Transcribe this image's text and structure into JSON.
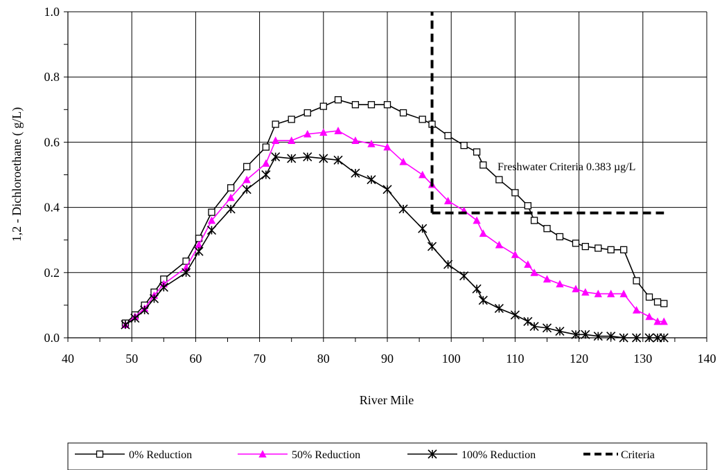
{
  "chart_data": {
    "type": "line",
    "xlabel": "River Mile",
    "ylabel": "1,2 - Dichloroethane (  g/L)",
    "xlim": [
      40,
      140
    ],
    "ylim": [
      0.0,
      1.0
    ],
    "x_ticks": [
      40,
      50,
      60,
      70,
      80,
      90,
      100,
      110,
      120,
      130,
      140
    ],
    "y_ticks": [
      "0.0",
      "0.2",
      "0.4",
      "0.6",
      "0.8",
      "1.0"
    ],
    "grid": "vertical major gridlines",
    "legend_position": "bottom",
    "annotation": "Freshwater Criteria 0.383 µg/L",
    "series": [
      {
        "name": "0% Reduction",
        "color": "#000000",
        "marker": "open-square",
        "x": [
          49,
          50.5,
          52,
          53.5,
          55,
          58.5,
          60.5,
          62.5,
          65.5,
          68,
          71,
          72.5,
          75,
          77.5,
          80,
          82.3,
          85,
          87.5,
          90,
          92.5,
          95.5,
          97,
          99.5,
          102,
          104,
          105,
          107.5,
          110,
          112,
          113,
          115,
          117,
          119.5,
          121,
          123,
          125,
          127,
          129,
          131,
          132.3,
          133.3
        ],
        "y": [
          0.045,
          0.07,
          0.1,
          0.14,
          0.18,
          0.235,
          0.305,
          0.385,
          0.46,
          0.525,
          0.585,
          0.655,
          0.67,
          0.69,
          0.71,
          0.73,
          0.715,
          0.715,
          0.715,
          0.69,
          0.67,
          0.655,
          0.62,
          0.59,
          0.57,
          0.53,
          0.485,
          0.445,
          0.405,
          0.36,
          0.335,
          0.31,
          0.29,
          0.28,
          0.275,
          0.27,
          0.27,
          0.175,
          0.125,
          0.11,
          0.105
        ]
      },
      {
        "name": "50% Reduction",
        "color": "#ff00ff",
        "marker": "filled-triangle",
        "x": [
          49,
          50.5,
          52,
          53.5,
          55,
          58.5,
          60.5,
          62.5,
          65.5,
          68,
          71,
          72.5,
          75,
          77.5,
          80,
          82.3,
          85,
          87.5,
          90,
          92.5,
          95.5,
          97,
          99.5,
          102,
          104,
          105,
          107.5,
          110,
          112,
          113,
          115,
          117,
          119.5,
          121,
          123,
          125,
          127,
          129,
          131,
          132.3,
          133.3
        ],
        "y": [
          0.04,
          0.065,
          0.09,
          0.13,
          0.165,
          0.215,
          0.285,
          0.36,
          0.43,
          0.485,
          0.535,
          0.605,
          0.605,
          0.625,
          0.63,
          0.635,
          0.605,
          0.595,
          0.585,
          0.54,
          0.5,
          0.47,
          0.42,
          0.39,
          0.36,
          0.32,
          0.285,
          0.255,
          0.225,
          0.2,
          0.18,
          0.165,
          0.15,
          0.14,
          0.135,
          0.135,
          0.135,
          0.085,
          0.065,
          0.05,
          0.05
        ]
      },
      {
        "name": "100% Reduction",
        "color": "#000000",
        "marker": "asterisk",
        "x": [
          49,
          50.5,
          52,
          53.5,
          55,
          58.5,
          60.5,
          62.5,
          65.5,
          68,
          71,
          72.5,
          75,
          77.5,
          80,
          82.3,
          85,
          87.5,
          90,
          92.5,
          95.5,
          97,
          99.5,
          102,
          104,
          105,
          107.5,
          110,
          112,
          113,
          115,
          117,
          119.5,
          121,
          123,
          125,
          127,
          129,
          131,
          132.3,
          133.3
        ],
        "y": [
          0.04,
          0.06,
          0.085,
          0.12,
          0.155,
          0.2,
          0.265,
          0.33,
          0.395,
          0.455,
          0.5,
          0.555,
          0.55,
          0.555,
          0.55,
          0.545,
          0.505,
          0.485,
          0.455,
          0.395,
          0.335,
          0.28,
          0.225,
          0.19,
          0.15,
          0.115,
          0.09,
          0.07,
          0.05,
          0.035,
          0.03,
          0.02,
          0.01,
          0.01,
          0.005,
          0.005,
          0.0,
          0.0,
          0.0,
          0.0,
          0.0
        ]
      },
      {
        "name": "Criteria",
        "color": "#000000",
        "marker": "none",
        "line_style": "dashed",
        "segments": [
          {
            "x": [
              97,
              97
            ],
            "y": [
              0.383,
              1.0
            ]
          },
          {
            "x": [
              97,
              133.3
            ],
            "y": [
              0.383,
              0.383
            ]
          }
        ]
      }
    ]
  }
}
